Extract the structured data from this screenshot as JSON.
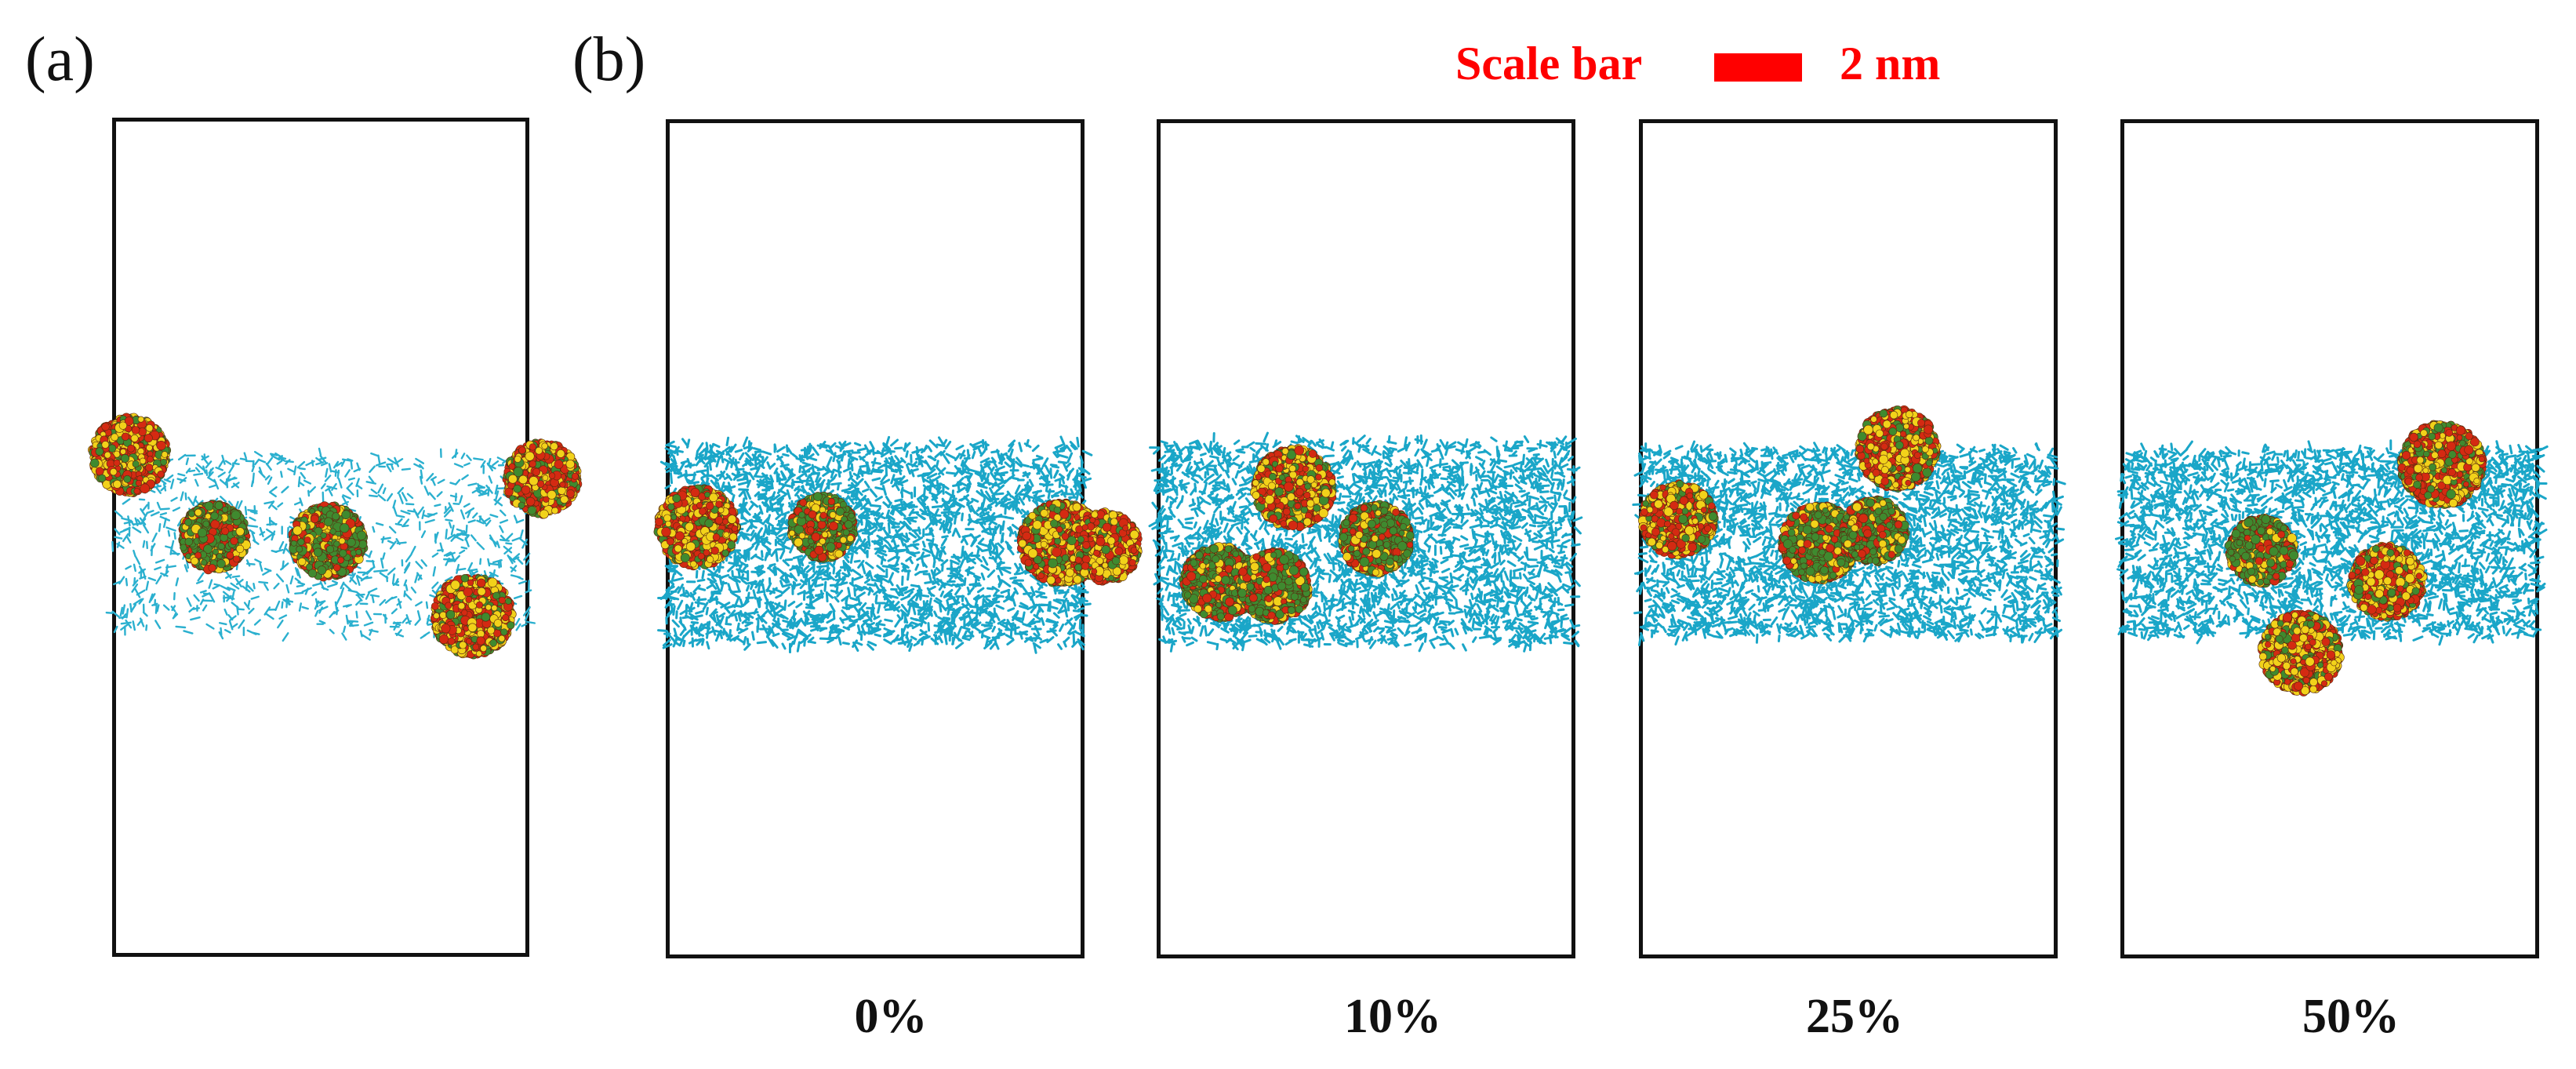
{
  "panels": {
    "a_label": "(a)",
    "b_label": "(b)"
  },
  "scale_bar": {
    "label": "Scale bar",
    "length": "2 nm",
    "color": "#ff0000"
  },
  "concentrations": [
    "0%",
    "10%",
    "25%",
    "50%"
  ],
  "colors": {
    "water_slab": "#1aa6c8",
    "water_slab_sparse": "#2bb0cf",
    "cluster_red": "#d42a12",
    "cluster_yellow": "#f2d21a",
    "cluster_green": "#3f8a2f",
    "frame": "#111111"
  }
}
